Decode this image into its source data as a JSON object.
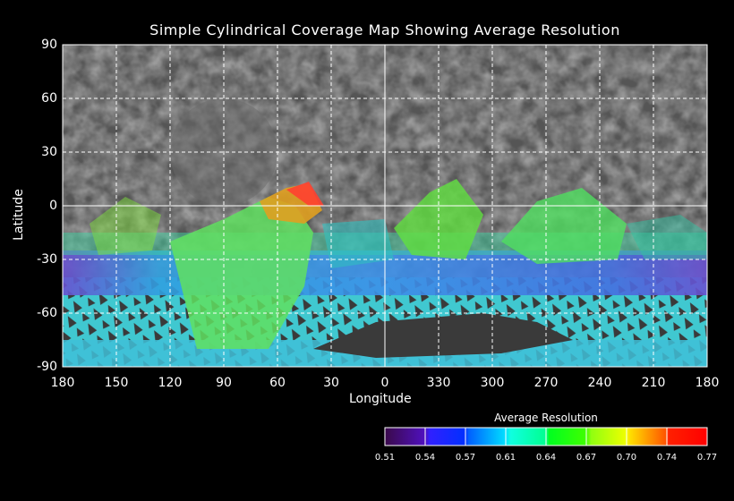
{
  "title": "Simple Cylindrical Coverage Map Showing Average Resolution",
  "x_axis": {
    "label": "Longitude",
    "ticks": [
      "180",
      "150",
      "120",
      "90",
      "60",
      "30",
      "0",
      "330",
      "300",
      "270",
      "240",
      "210",
      "180"
    ]
  },
  "y_axis": {
    "label": "Latitude",
    "ticks": [
      "90",
      "60",
      "30",
      "0",
      "-30",
      "-60",
      "-90"
    ]
  },
  "colorbar": {
    "title": "Average Resolution",
    "ticks": [
      "0.51",
      "0.54",
      "0.57",
      "0.61",
      "0.64",
      "0.67",
      "0.70",
      "0.74",
      "0.77"
    ],
    "colors": [
      "#3a0a5a",
      "#2020ff",
      "#00a0ff",
      "#00ffc0",
      "#00ff00",
      "#a0ff00",
      "#ffd000",
      "#ff5000",
      "#ff0000"
    ]
  }
}
